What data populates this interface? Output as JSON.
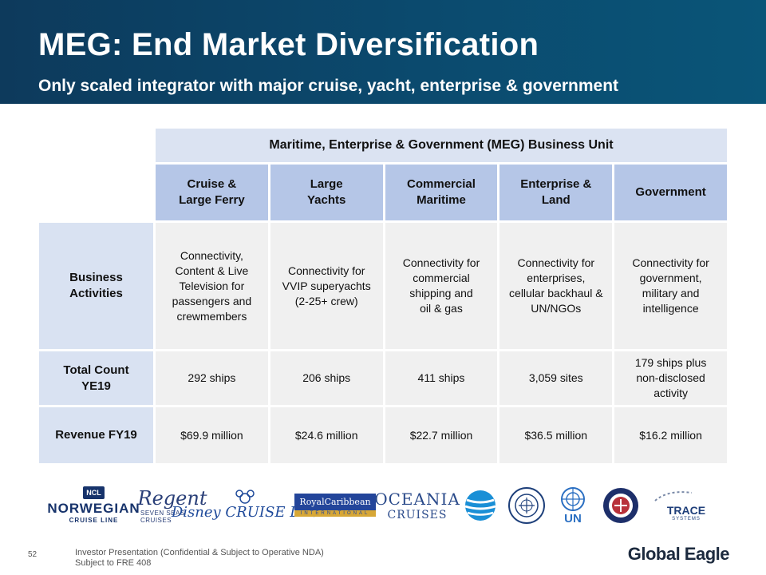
{
  "header": {
    "title": "MEG: End Market Diversification",
    "subtitle": "Only scaled integrator with major cruise, yacht, enterprise & government"
  },
  "table": {
    "unit_header": "Maritime, Enterprise & Government (MEG) Business Unit",
    "segments": [
      {
        "line1": "Cruise &",
        "line2": "Large Ferry"
      },
      {
        "line1": "Large",
        "line2": "Yachts"
      },
      {
        "line1": "Commercial",
        "line2": "Maritime"
      },
      {
        "line1": "Enterprise &",
        "line2": "Land"
      },
      {
        "line1": "Government",
        "line2": ""
      }
    ],
    "rows": {
      "activities": {
        "label_line1": "Business",
        "label_line2": "Activities",
        "cells": [
          [
            "Connectivity,",
            "Content & Live",
            "Television for",
            "passengers and",
            "crewmembers"
          ],
          [
            "Connectivity for",
            "VVIP superyachts",
            "(2-25+ crew)"
          ],
          [
            "Connectivity for",
            "commercial",
            "shipping and",
            "oil & gas"
          ],
          [
            "Connectivity for",
            "enterprises,",
            "cellular backhaul &",
            "UN/NGOs"
          ],
          [
            "Connectivity for",
            "government,",
            "military and",
            "intelligence"
          ]
        ]
      },
      "count": {
        "label_line1": "Total Count",
        "label_line2": "YE19",
        "cells": [
          [
            "292 ships"
          ],
          [
            "206 ships"
          ],
          [
            "411 ships"
          ],
          [
            "3,059 sites"
          ],
          [
            "179 ships plus",
            "non-disclosed",
            "activity"
          ]
        ]
      },
      "revenue": {
        "label": "Revenue FY19",
        "cells": [
          "$69.9 million",
          "$24.6 million",
          "$22.7 million",
          "$36.5 million",
          "$16.2 million"
        ]
      }
    }
  },
  "logos": {
    "ncl": {
      "badge": "NCL",
      "name": "NORWEGIAN",
      "sub": "CRUISE LINE"
    },
    "regent": {
      "name": "Regent",
      "sub": "SEVEN SEAS CRUISES"
    },
    "disney": {
      "name": "Disney CRUISE LINE"
    },
    "royal_caribbean": {
      "name": "RoyalCaribbean",
      "sub": "INTERNATIONAL"
    },
    "oceania": {
      "name": "OCEANIA",
      "sub": "CRUISES"
    },
    "att": {
      "icon": "att-globe-icon"
    },
    "imf": {
      "icon": "imf-seal-icon"
    },
    "un": {
      "name": "UN"
    },
    "navy": {
      "icon": "navy-seal-icon"
    },
    "trace": {
      "name": "TRACE",
      "sub": "SYSTEMS"
    }
  },
  "footer": {
    "page_number": "52",
    "line1": "Investor Presentation (Confidential & Subject to Operative NDA)",
    "line2": "Subject to FRE 408",
    "brand": "Global Eagle"
  },
  "colors": {
    "header_bg": "#0d3a5c",
    "unit_header_bg": "#dbe3f2",
    "segment_header_bg": "#b5c6e7",
    "row_label_bg": "#d9e2f2",
    "cell_bg": "#f0f0f0"
  }
}
